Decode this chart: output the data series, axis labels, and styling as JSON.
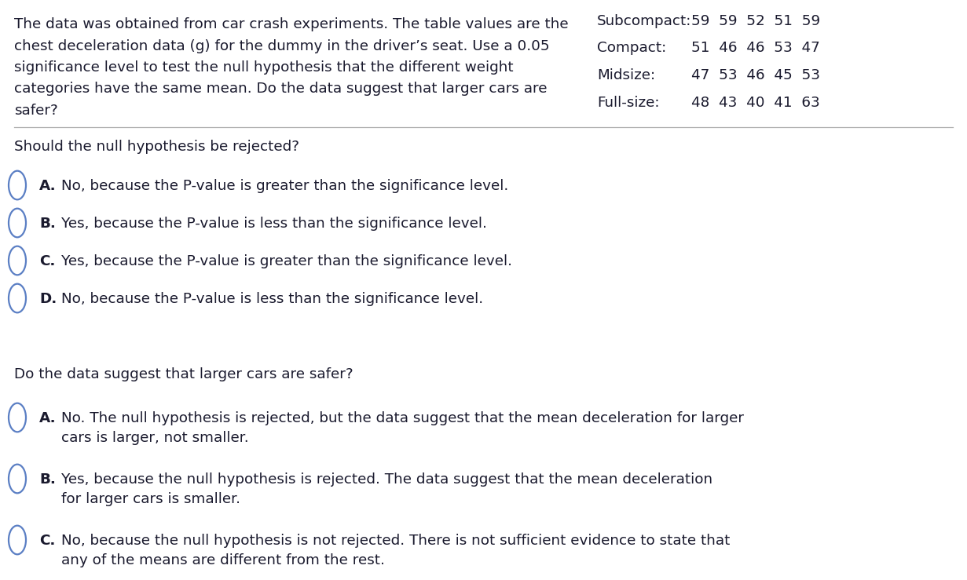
{
  "background_color": "#ffffff",
  "text_color": "#1a1a2e",
  "intro_text_lines": [
    "The data was obtained from car crash experiments. The table values are the",
    "chest deceleration data (g) for the dummy in the driver’s seat. Use a 0.05",
    "significance level to test the null hypothesis that the different weight",
    "categories have the same mean. Do the data suggest that larger cars are",
    "safer?"
  ],
  "table_data": [
    {
      "label": "Subcompact:",
      "values": "59  59  52  51  59"
    },
    {
      "label": "Compact:",
      "values": "51  46  46  53  47"
    },
    {
      "label": "Midsize:",
      "values": "47  53  46  45  53"
    },
    {
      "label": "Full-size:",
      "values": "48  43  40  41  63"
    }
  ],
  "question1": "Should the null hypothesis be rejected?",
  "q1_options": [
    {
      "letter": "A.",
      "text": "No, because the P-value is greater than the significance level."
    },
    {
      "letter": "B.",
      "text": "Yes, because the P-value is less than the significance level."
    },
    {
      "letter": "C.",
      "text": "Yes, because the P-value is greater than the significance level."
    },
    {
      "letter": "D.",
      "text": "No, because the P-value is less than the significance level."
    }
  ],
  "question2": "Do the data suggest that larger cars are safer?",
  "q2_options": [
    {
      "letter": "A.",
      "text": "No. The null hypothesis is rejected, but the data suggest that the mean deceleration for larger\ncars is larger, not smaller."
    },
    {
      "letter": "B.",
      "text": "Yes, because the null hypothesis is rejected. The data suggest that the mean deceleration\nfor larger cars is smaller."
    },
    {
      "letter": "C.",
      "text": "No, because the null hypothesis is not rejected. There is not sufficient evidence to state that\nany of the means are different from the rest."
    }
  ],
  "font_size": 13.2,
  "font_family": "DejaVu Sans",
  "circle_color": "#5b7fc4",
  "divider_color": "#b0b0b0"
}
